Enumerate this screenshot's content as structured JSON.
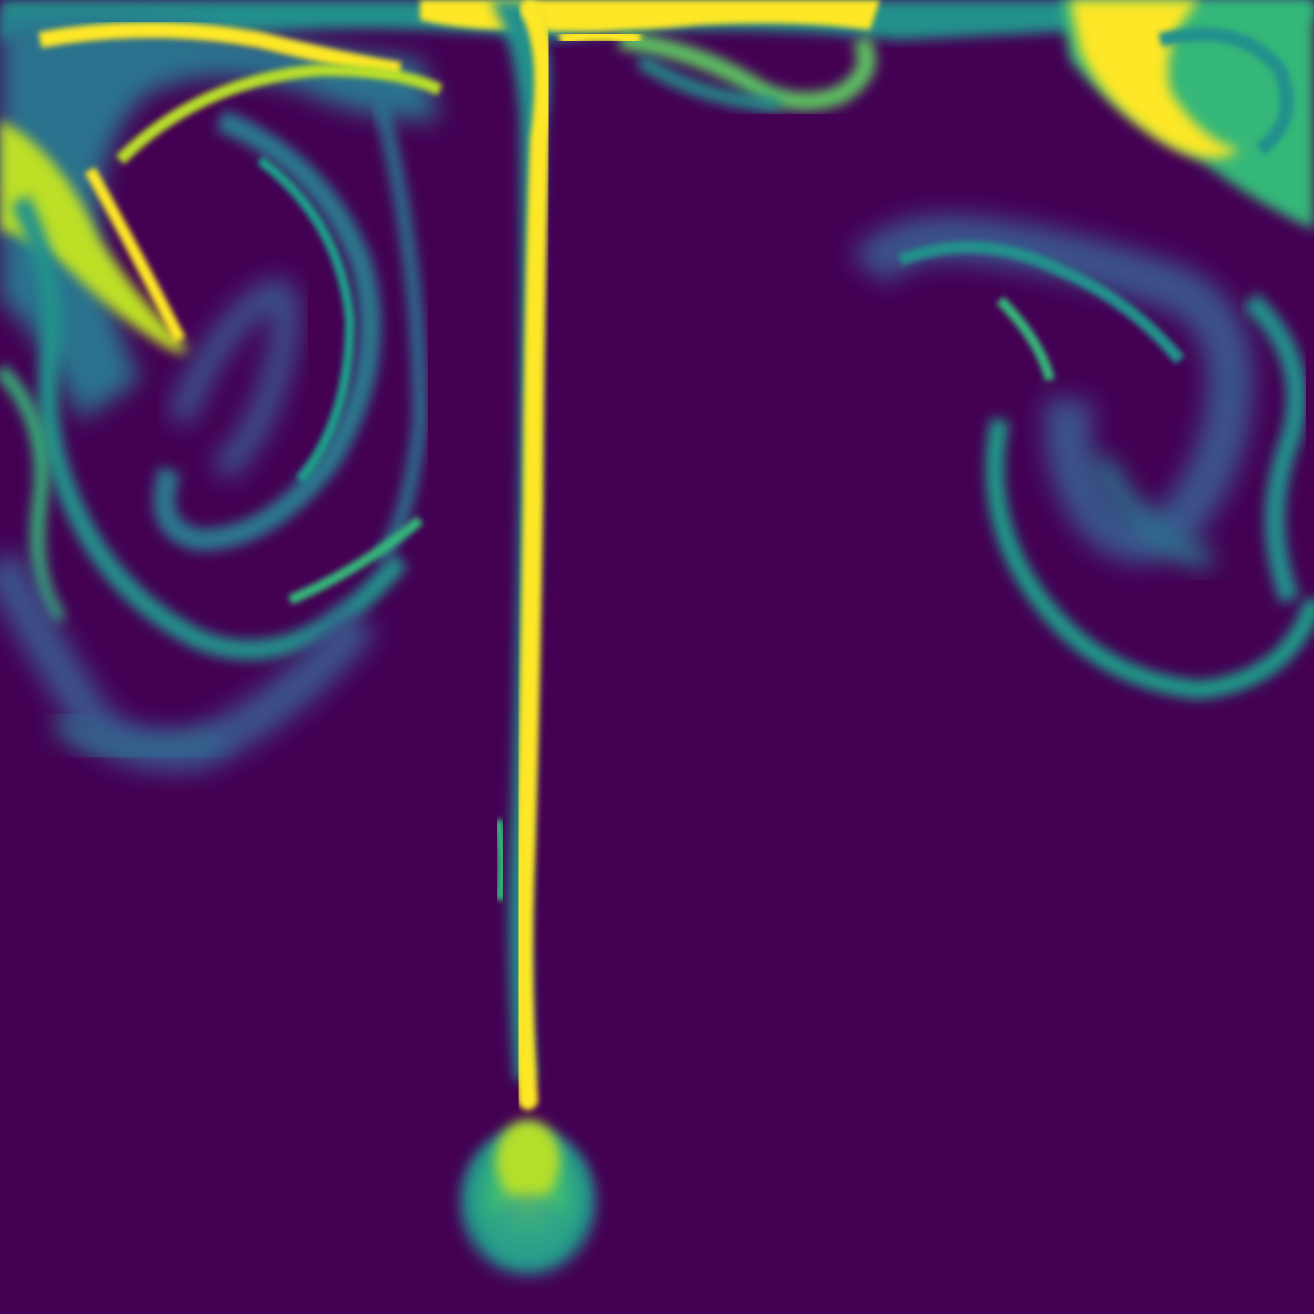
{
  "image": {
    "kind": "scalar-field visualization",
    "colormap": "viridis",
    "colors": {
      "background": "#440154",
      "low": "#472d7b",
      "mid_low": "#3b528b",
      "mid": "#21918c",
      "mid_high": "#5ec962",
      "high": "#fde725"
    },
    "features": [
      "central-plume-stem",
      "plume-head",
      "top-left-swirl",
      "top-right-swirl",
      "top-band"
    ]
  }
}
